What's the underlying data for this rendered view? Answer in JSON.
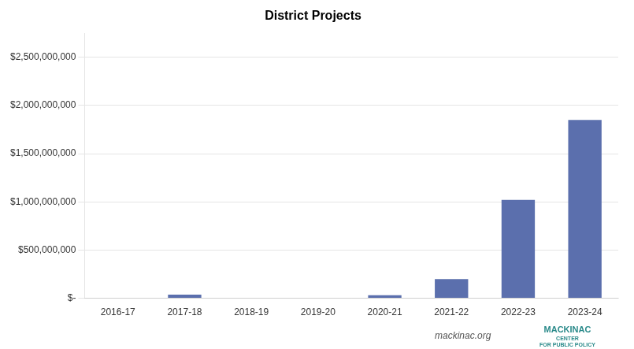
{
  "chart_data": {
    "type": "bar",
    "title": "District Projects",
    "categories": [
      "2016-17",
      "2017-18",
      "2018-19",
      "2019-20",
      "2020-21",
      "2021-22",
      "2022-23",
      "2023-24"
    ],
    "values": [
      5200000,
      38600000,
      0,
      0,
      31300000,
      200000000,
      1020000000,
      1850000000
    ],
    "color": "#5b6fad",
    "ylim": [
      0,
      2750000000
    ],
    "yticks": [
      {
        "value": 0,
        "label": "$-"
      },
      {
        "value": 500000000,
        "label": "$500,000,000"
      },
      {
        "value": 1000000000,
        "label": "$1,000,000,000"
      },
      {
        "value": 1500000000,
        "label": "$1,500,000,000"
      },
      {
        "value": 2000000000,
        "label": "$2,000,000,000"
      },
      {
        "value": 2500000000,
        "label": "$2,500,000,000"
      }
    ],
    "grid": true,
    "annotations": [
      {
        "text": "mackinac.org",
        "color": "#555555"
      },
      {
        "text": "MACKINAC",
        "color": "#2a8a8a"
      },
      {
        "text": "CENTER\nFOR PUBLIC POLICY",
        "color": "#2a8a8a"
      }
    ]
  }
}
